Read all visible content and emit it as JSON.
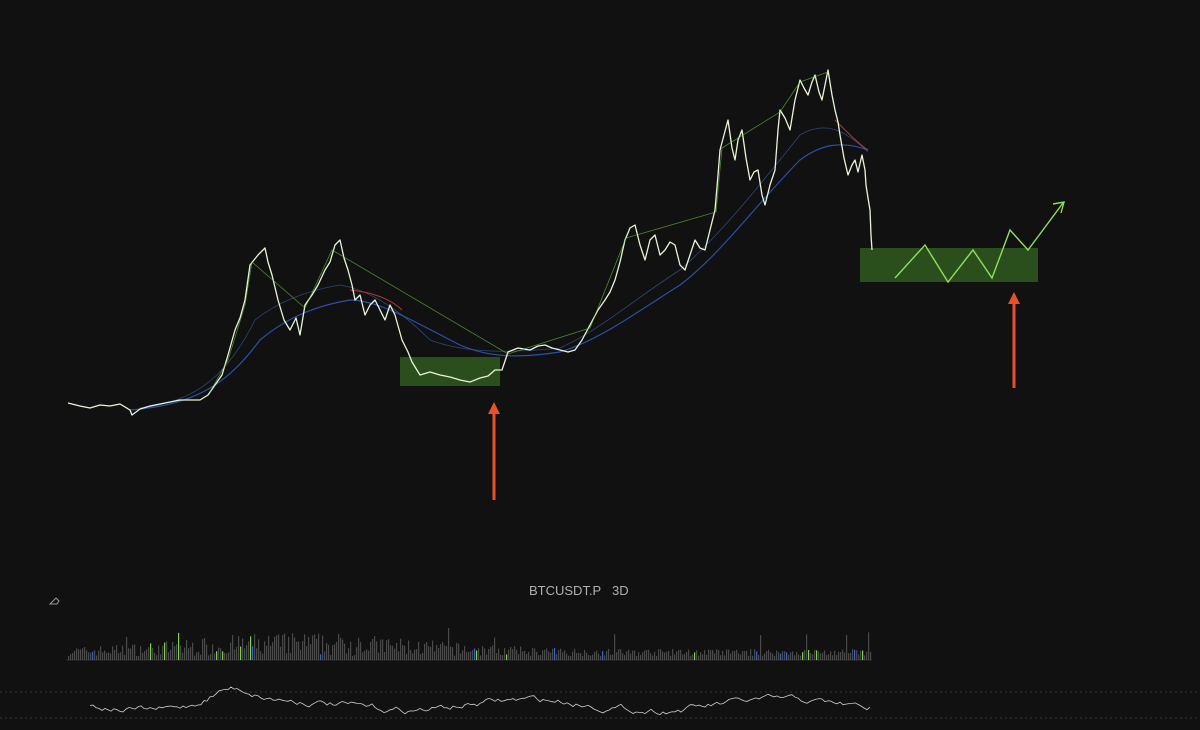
{
  "symbol": "BTCUSDT.P",
  "interval": "3D"
}
